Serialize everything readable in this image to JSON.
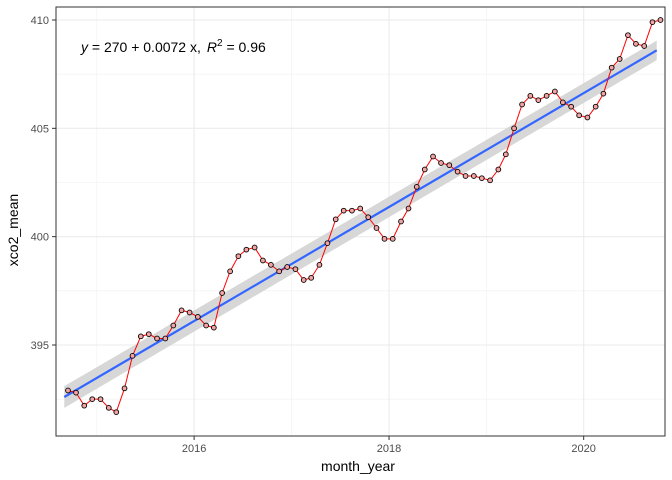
{
  "chart_data": {
    "type": "line",
    "title": "",
    "xlabel": "month_year",
    "ylabel": "xco2_mean",
    "xlim": [
      "2014-08-01",
      "2020-11-01"
    ],
    "ylim": [
      390.8,
      410.6
    ],
    "x_ticks": [
      {
        "date": "2016-01-01",
        "label": "2016"
      },
      {
        "date": "2018-01-01",
        "label": "2018"
      },
      {
        "date": "2020-01-01",
        "label": "2020"
      }
    ],
    "y_ticks": [
      395,
      400,
      405,
      410
    ],
    "y_tick_labels": [
      "395",
      "400",
      "405",
      "410"
    ],
    "grid": true,
    "annotation": {
      "y_part": "y",
      "equation": " = 270 + 0.0072 x,",
      "r_part": "R",
      "r_exp": "2",
      "r_value": " = 0.96"
    },
    "series": [
      {
        "type": "line-with-points",
        "line_color": "#ff0000",
        "point_fill": "#f4a3a3",
        "point_stroke": "#000000",
        "x": [
          "2014-09",
          "2014-10",
          "2014-11",
          "2014-12",
          "2015-01",
          "2015-02",
          "2015-03",
          "2015-04",
          "2015-05",
          "2015-06",
          "2015-07",
          "2015-08",
          "2015-09",
          "2015-10",
          "2015-11",
          "2015-12",
          "2016-01",
          "2016-02",
          "2016-03",
          "2016-04",
          "2016-05",
          "2016-06",
          "2016-07",
          "2016-08",
          "2016-09",
          "2016-10",
          "2016-11",
          "2016-12",
          "2017-01",
          "2017-02",
          "2017-03",
          "2017-04",
          "2017-05",
          "2017-06",
          "2017-07",
          "2017-08",
          "2017-09",
          "2017-10",
          "2017-11",
          "2017-12",
          "2018-01",
          "2018-02",
          "2018-03",
          "2018-04",
          "2018-05",
          "2018-06",
          "2018-07",
          "2018-08",
          "2018-09",
          "2018-10",
          "2018-11",
          "2018-12",
          "2019-01",
          "2019-02",
          "2019-03",
          "2019-04",
          "2019-05",
          "2019-06",
          "2019-07",
          "2019-08",
          "2019-09",
          "2019-10",
          "2019-11",
          "2019-12",
          "2020-01",
          "2020-02",
          "2020-03",
          "2020-04",
          "2020-05",
          "2020-06",
          "2020-07",
          "2020-08",
          "2020-09",
          "2020-10"
        ],
        "y": [
          392.9,
          392.8,
          392.2,
          392.5,
          392.5,
          392.1,
          391.9,
          393.0,
          394.5,
          395.4,
          395.5,
          395.3,
          395.3,
          395.9,
          396.6,
          396.5,
          396.3,
          395.9,
          395.8,
          397.4,
          398.4,
          399.1,
          399.4,
          399.5,
          398.9,
          398.7,
          398.4,
          398.6,
          398.5,
          398.0,
          398.1,
          398.7,
          399.7,
          400.8,
          401.2,
          401.2,
          401.3,
          400.9,
          400.4,
          399.9,
          399.9,
          400.7,
          401.3,
          402.3,
          403.1,
          403.7,
          403.4,
          403.3,
          403.0,
          402.8,
          402.8,
          402.7,
          402.6,
          403.1,
          403.8,
          405.0,
          406.1,
          406.5,
          406.3,
          406.5,
          406.7,
          406.2,
          406.0,
          405.6,
          405.5,
          406.0,
          406.6,
          407.8,
          408.2,
          409.3,
          408.9,
          408.8,
          409.9,
          410.0
        ]
      },
      {
        "type": "linear-fit",
        "color": "#3366ff",
        "band_color": "#d3d3d3",
        "x": [
          "2014-09",
          "2020-10"
        ],
        "y": [
          392.6,
          408.6
        ],
        "ci_half_width": [
          0.5,
          0.45
        ]
      }
    ]
  }
}
